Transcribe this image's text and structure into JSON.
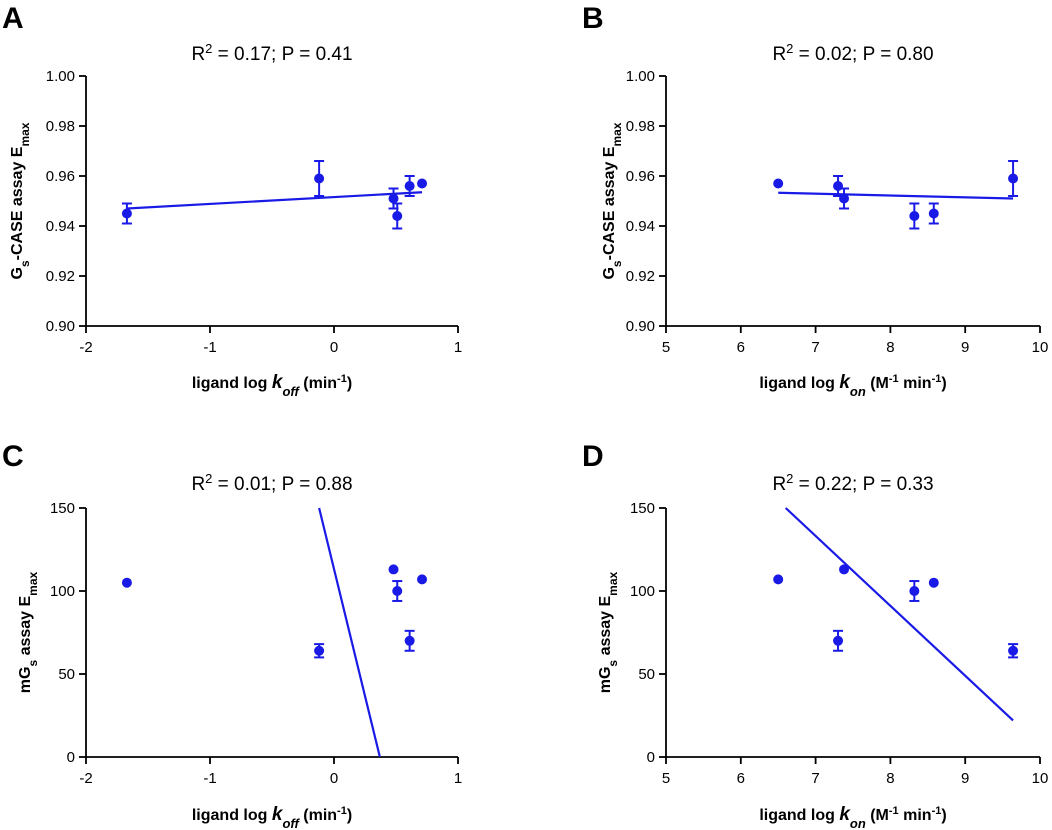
{
  "figure": {
    "mark_color": "#1a1ae6"
  },
  "chart_data": [
    {
      "type": "scatter",
      "panel": "A",
      "title": {
        "pre": "R",
        "sup": "2",
        "post": " = 0.17; P = 0.41"
      },
      "xlabel": {
        "pre": "ligand log ",
        "k": "k",
        "ksub": "off",
        "post": " (min",
        "sup": "-1",
        "end": ")"
      },
      "ylabel": {
        "pre": "G",
        "sub": "s",
        "mid": "-CASE assay E",
        "sub2": "max"
      },
      "xlim": [
        -2,
        1
      ],
      "ylim": [
        0.9,
        1.0
      ],
      "xticks": [
        -2,
        -1,
        0,
        1
      ],
      "xtick_labels": [
        "-2",
        "-1",
        "0",
        "1"
      ],
      "yticks": [
        0.9,
        0.92,
        0.94,
        0.96,
        0.98,
        1.0
      ],
      "ytick_labels": [
        "0.90",
        "0.92",
        "0.94",
        "0.96",
        "0.98",
        "1.00"
      ],
      "points": [
        {
          "x": -1.67,
          "y": 0.945,
          "err": 0.004
        },
        {
          "x": -0.12,
          "y": 0.959,
          "err": 0.007
        },
        {
          "x": 0.48,
          "y": 0.951,
          "err": 0.004
        },
        {
          "x": 0.51,
          "y": 0.944,
          "err": 0.005
        },
        {
          "x": 0.61,
          "y": 0.956,
          "err": 0.004
        },
        {
          "x": 0.71,
          "y": 0.957,
          "err": 0
        }
      ],
      "fit": {
        "x": [
          -1.67,
          0.71
        ],
        "y": [
          0.947,
          0.9535
        ]
      }
    },
    {
      "type": "scatter",
      "panel": "B",
      "title": {
        "pre": "R",
        "sup": "2",
        "post": " = 0.02; P = 0.80"
      },
      "xlabel": {
        "pre": "ligand log ",
        "k": "k",
        "ksub": "on",
        "post": " (M",
        "sup": "-1",
        "end": " min",
        "sup2": "-1",
        "end2": ")"
      },
      "ylabel": {
        "pre": "G",
        "sub": "s",
        "mid": "-CASE assay E",
        "sub2": "max"
      },
      "xlim": [
        5,
        10
      ],
      "ylim": [
        0.9,
        1.0
      ],
      "xticks": [
        5,
        6,
        7,
        8,
        9,
        10
      ],
      "xtick_labels": [
        "5",
        "6",
        "7",
        "8",
        "9",
        "10"
      ],
      "yticks": [
        0.9,
        0.92,
        0.94,
        0.96,
        0.98,
        1.0
      ],
      "ytick_labels": [
        "0.90",
        "0.92",
        "0.94",
        "0.96",
        "0.98",
        "1.00"
      ],
      "points": [
        {
          "x": 6.5,
          "y": 0.957,
          "err": 0
        },
        {
          "x": 7.3,
          "y": 0.956,
          "err": 0.004
        },
        {
          "x": 7.38,
          "y": 0.951,
          "err": 0.004
        },
        {
          "x": 8.32,
          "y": 0.944,
          "err": 0.005
        },
        {
          "x": 8.58,
          "y": 0.945,
          "err": 0.004
        },
        {
          "x": 9.64,
          "y": 0.959,
          "err": 0.007
        }
      ],
      "fit": {
        "x": [
          6.5,
          9.64
        ],
        "y": [
          0.9533,
          0.951
        ]
      }
    },
    {
      "type": "scatter",
      "panel": "C",
      "title": {
        "pre": "R",
        "sup": "2",
        "post": " = 0.01; P = 0.88"
      },
      "xlabel": {
        "pre": "ligand log ",
        "k": "k",
        "ksub": "off",
        "post": " (min",
        "sup": "-1",
        "end": ")"
      },
      "ylabel": {
        "pre": "mG",
        "sub": "s",
        "mid": " assay E",
        "sub2": "max"
      },
      "xlim": [
        -2,
        1
      ],
      "ylim": [
        0,
        150
      ],
      "xticks": [
        -2,
        -1,
        0,
        1
      ],
      "xtick_labels": [
        "-2",
        "-1",
        "0",
        "1"
      ],
      "yticks": [
        0,
        50,
        100,
        150
      ],
      "ytick_labels": [
        "0",
        "50",
        "100",
        "150"
      ],
      "points": [
        {
          "x": -1.67,
          "y": 105,
          "err": 0
        },
        {
          "x": -0.12,
          "y": 64,
          "err": 4
        },
        {
          "x": 0.48,
          "y": 113,
          "err": 0
        },
        {
          "x": 0.51,
          "y": 100,
          "err": 6
        },
        {
          "x": 0.61,
          "y": 70,
          "err": 6
        },
        {
          "x": 0.71,
          "y": 107,
          "err": 0
        }
      ],
      "fit": {
        "x": [
          -0.12,
          0.37
        ],
        "y": [
          150,
          0
        ]
      }
    },
    {
      "type": "scatter",
      "panel": "D",
      "title": {
        "pre": "R",
        "sup": "2",
        "post": " = 0.22; P = 0.33"
      },
      "xlabel": {
        "pre": "ligand log ",
        "k": "k",
        "ksub": "on",
        "post": " (M",
        "sup": "-1",
        "end": " min",
        "sup2": "-1",
        "end2": ")"
      },
      "ylabel": {
        "pre": "mG",
        "sub": "s",
        "mid": " assay E",
        "sub2": "max"
      },
      "xlim": [
        5,
        10
      ],
      "ylim": [
        0,
        150
      ],
      "xticks": [
        5,
        6,
        7,
        8,
        9,
        10
      ],
      "xtick_labels": [
        "5",
        "6",
        "7",
        "8",
        "9",
        "10"
      ],
      "yticks": [
        0,
        50,
        100,
        150
      ],
      "ytick_labels": [
        "0",
        "50",
        "100",
        "150"
      ],
      "points": [
        {
          "x": 6.5,
          "y": 107,
          "err": 0
        },
        {
          "x": 7.3,
          "y": 70,
          "err": 6
        },
        {
          "x": 7.38,
          "y": 113,
          "err": 0
        },
        {
          "x": 8.32,
          "y": 100,
          "err": 6
        },
        {
          "x": 8.58,
          "y": 105,
          "err": 0
        },
        {
          "x": 9.64,
          "y": 64,
          "err": 4
        }
      ],
      "fit": {
        "x": [
          6.6,
          9.64
        ],
        "y": [
          150,
          22
        ]
      }
    }
  ]
}
